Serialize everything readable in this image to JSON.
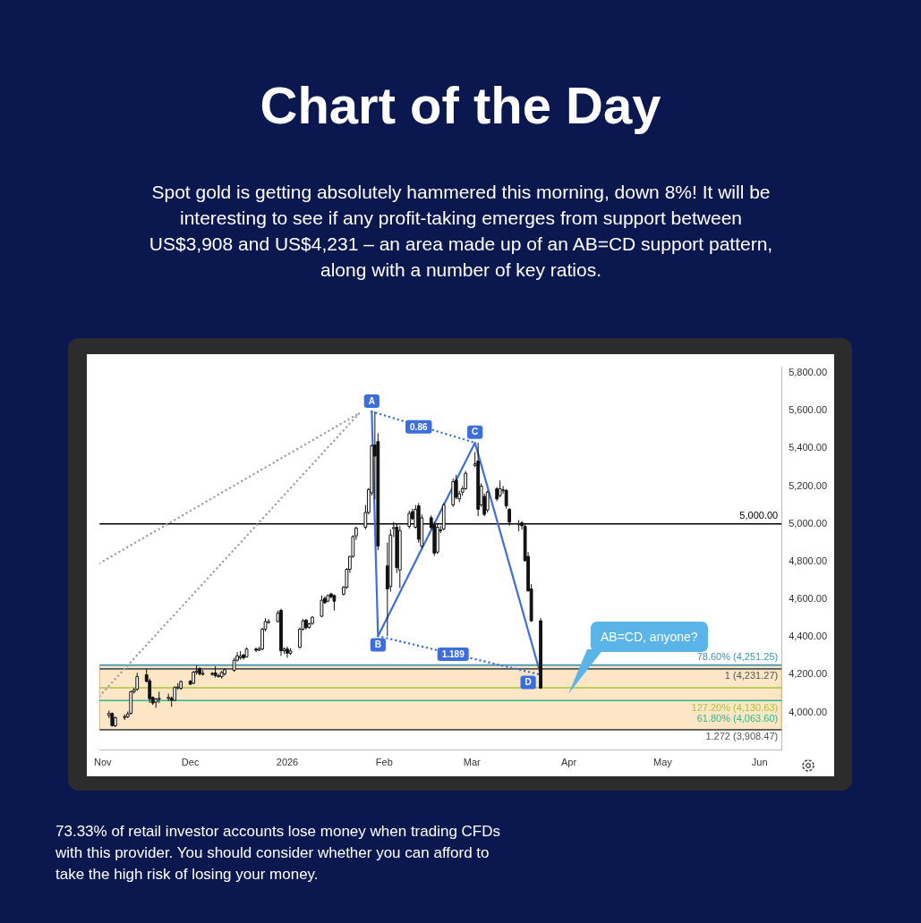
{
  "chart_data": {
    "type": "candlestick",
    "title": "Chart of the Day",
    "subtitle": "Spot gold is getting absolutely hammered this morning, down 8%! It will be interesting to see if any profit-taking emerges from support between US$3,908 and US$4,231 – an area made up of an AB=CD support pattern, along with a number of key ratios.",
    "x": [
      "2025-11-05",
      "2025-11-06",
      "2025-11-07",
      "2025-11-10",
      "2025-11-11",
      "2025-11-12",
      "2025-11-13",
      "2025-11-14",
      "2025-11-17",
      "2025-11-18",
      "2025-11-19",
      "2025-11-20",
      "2025-11-21",
      "2025-11-24",
      "2025-11-25",
      "2025-11-26",
      "2025-11-27",
      "2025-11-28",
      "2025-12-01",
      "2025-12-02",
      "2025-12-03",
      "2025-12-04",
      "2025-12-05",
      "2025-12-08",
      "2025-12-09",
      "2025-12-10",
      "2025-12-11",
      "2025-12-12",
      "2025-12-15",
      "2025-12-16",
      "2025-12-17",
      "2025-12-18",
      "2025-12-19",
      "2025-12-22",
      "2025-12-23",
      "2025-12-24",
      "2025-12-25",
      "2025-12-26",
      "2025-12-29",
      "2025-12-30",
      "2025-12-31",
      "2026-01-01",
      "2026-01-02",
      "2026-01-05",
      "2026-01-06",
      "2026-01-07",
      "2026-01-08",
      "2026-01-09",
      "2026-01-12",
      "2026-01-13",
      "2026-01-14",
      "2026-01-15",
      "2026-01-16",
      "2026-01-19",
      "2026-01-20",
      "2026-01-21",
      "2026-01-22",
      "2026-01-23",
      "2026-01-26",
      "2026-01-27",
      "2026-01-28",
      "2026-01-29",
      "2026-01-30",
      "2026-02-02",
      "2026-02-03",
      "2026-02-04",
      "2026-02-05",
      "2026-02-06",
      "2026-02-09",
      "2026-02-10",
      "2026-02-11",
      "2026-02-12",
      "2026-02-13",
      "2026-02-16",
      "2026-02-17",
      "2026-02-18",
      "2026-02-19",
      "2026-02-20",
      "2026-02-23",
      "2026-02-24",
      "2026-02-25",
      "2026-02-26",
      "2026-02-27",
      "2026-03-02",
      "2026-03-03",
      "2026-03-04",
      "2026-03-05",
      "2026-03-06",
      "2026-03-09",
      "2026-03-10",
      "2026-03-11",
      "2026-03-12",
      "2026-03-13",
      "2026-03-16",
      "2026-03-17",
      "2026-03-18",
      "2026-03-19",
      "2026-03-20",
      "2026-03-23"
    ],
    "ohlc": [
      [
        3985,
        4010,
        3970,
        3995
      ],
      [
        3995,
        4000,
        3925,
        3930
      ],
      [
        3930,
        3978,
        3922,
        3973
      ],
      [
        3973,
        3990,
        3960,
        3978
      ],
      [
        3978,
        4005,
        3970,
        3992
      ],
      [
        3995,
        4115,
        3990,
        4110
      ],
      [
        4110,
        4130,
        4100,
        4120
      ],
      [
        4123,
        4210,
        4115,
        4190
      ],
      [
        4200,
        4230,
        4160,
        4165
      ],
      [
        4168,
        4180,
        4050,
        4073
      ],
      [
        4080,
        4085,
        4040,
        4050
      ],
      [
        4055,
        4078,
        4025,
        4070
      ],
      [
        4072,
        4110,
        4050,
        4075
      ],
      [
        4075,
        4100,
        4060,
        4080
      ],
      [
        4075,
        4085,
        4030,
        4065
      ],
      [
        4064,
        4140,
        4060,
        4132
      ],
      [
        4132,
        4155,
        4120,
        4135
      ],
      [
        4128,
        4170,
        4120,
        4164
      ],
      [
        4165,
        4172,
        4145,
        4150
      ],
      [
        4155,
        4220,
        4150,
        4214
      ],
      [
        4214,
        4250,
        4200,
        4220
      ],
      [
        4232,
        4240,
        4195,
        4205
      ],
      [
        4205,
        4225,
        4195,
        4207
      ],
      [
        4207,
        4215,
        4195,
        4205
      ],
      [
        4210,
        4245,
        4185,
        4195
      ],
      [
        4195,
        4205,
        4185,
        4195
      ],
      [
        4190,
        4220,
        4180,
        4212
      ],
      [
        4205,
        4235,
        4195,
        4227
      ],
      [
        4223,
        4290,
        4215,
        4277
      ],
      [
        4277,
        4320,
        4270,
        4300
      ],
      [
        4290,
        4325,
        4280,
        4298
      ],
      [
        4305,
        4310,
        4280,
        4290
      ],
      [
        4295,
        4345,
        4290,
        4336
      ],
      [
        4336,
        4345,
        4320,
        4330
      ],
      [
        4330,
        4350,
        4325,
        4336
      ],
      [
        4336,
        4450,
        4330,
        4441
      ],
      [
        4441,
        4500,
        4430,
        4482
      ],
      [
        4482,
        4495,
        4470,
        4482
      ],
      [
        4482,
        4540,
        4478,
        4527
      ],
      [
        4541,
        4550,
        4300,
        4327
      ],
      [
        4327,
        4345,
        4310,
        4336
      ],
      [
        4336,
        4350,
        4290,
        4314
      ],
      [
        4314,
        4340,
        4305,
        4326
      ],
      [
        4345,
        4450,
        4340,
        4441
      ],
      [
        4441,
        4495,
        4435,
        4486
      ],
      [
        4490,
        4495,
        4440,
        4450
      ],
      [
        4450,
        4475,
        4445,
        4470
      ],
      [
        4472,
        4510,
        4465,
        4505
      ],
      [
        4510,
        4620,
        4505,
        4595
      ],
      [
        4605,
        4615,
        4575,
        4582
      ],
      [
        4590,
        4625,
        4585,
        4620
      ],
      [
        4628,
        4635,
        4605,
        4613
      ],
      [
        4620,
        4625,
        4540,
        4590
      ],
      [
        4627,
        4670,
        4620,
        4664
      ],
      [
        4664,
        4765,
        4655,
        4759
      ],
      [
        4759,
        4830,
        4740,
        4827
      ],
      [
        4827,
        4940,
        4820,
        4932
      ],
      [
        4936,
        4985,
        4915,
        4977
      ],
      [
        4982,
        5100,
        4970,
        5060
      ],
      [
        5060,
        5190,
        5050,
        5182
      ],
      [
        5164,
        5420,
        5150,
        5414
      ],
      [
        5418,
        5595,
        5130,
        5359
      ],
      [
        5436,
        5480,
        4860,
        4882
      ],
      [
        4777,
        4900,
        4405,
        4655
      ],
      [
        4668,
        4970,
        4640,
        4941
      ],
      [
        4975,
        5010,
        4930,
        4980
      ],
      [
        4982,
        5000,
        4740,
        4768
      ],
      [
        4755,
        4990,
        4660,
        4964
      ],
      [
        4986,
        5070,
        4975,
        5055
      ],
      [
        5064,
        5080,
        5020,
        5027
      ],
      [
        4982,
        5100,
        4975,
        5077
      ],
      [
        5095,
        5110,
        4900,
        4918
      ],
      [
        4882,
        5050,
        4870,
        5032
      ],
      [
        5032,
        5045,
        4970,
        4980
      ],
      [
        4995,
        5010,
        4830,
        4845
      ],
      [
        4850,
        5000,
        4840,
        4982
      ],
      [
        4965,
        4990,
        4950,
        4968
      ],
      [
        4973,
        5110,
        4965,
        5100
      ],
      [
        5100,
        5240,
        5090,
        5223
      ],
      [
        5232,
        5260,
        5130,
        5141
      ],
      [
        5132,
        5175,
        5115,
        5159
      ],
      [
        5168,
        5200,
        5150,
        5186
      ],
      [
        5186,
        5280,
        5180,
        5268
      ],
      [
        5310,
        5380,
        5300,
        5318
      ],
      [
        5332,
        5430,
        5040,
        5077
      ],
      [
        5100,
        5215,
        5090,
        5200
      ],
      [
        5145,
        5160,
        5040,
        5050
      ],
      [
        5073,
        5175,
        5060,
        5168
      ],
      [
        5186,
        5195,
        5120,
        5132
      ],
      [
        5150,
        5230,
        5140,
        5186
      ],
      [
        5180,
        5200,
        5160,
        5180
      ],
      [
        5177,
        5185,
        5080,
        5095
      ],
      [
        5077,
        5085,
        4990,
        5009
      ],
      [
        4995,
        5020,
        4960,
        5000
      ],
      [
        5005,
        5015,
        4970,
        4990
      ],
      [
        4986,
        5000,
        4800,
        4805
      ],
      [
        4827,
        4850,
        4640,
        4645
      ],
      [
        4655,
        4680,
        4480,
        4486
      ],
      [
        4486,
        4500,
        4125,
        4130
      ]
    ],
    "series": [
      {
        "type": "line",
        "color": "#9e9e9e",
        "line_style": "dotted",
        "x": [
          "2025-11-02",
          "2026-01-24"
        ],
        "values": [
          4791,
          5586
        ]
      },
      {
        "type": "line",
        "color": "#9e9e9e",
        "line_style": "dotted",
        "x": [
          "2025-11-02",
          "2026-01-24"
        ],
        "values": [
          4087,
          5586
        ]
      },
      {
        "type": "line",
        "color": "#3d6fdc",
        "line_style": "solid",
        "x": [
          "2026-01-28",
          "2026-01-30",
          "2026-03-02",
          "2026-03-23"
        ],
        "values": [
          5595,
          4405,
          5430,
          4200
        ]
      },
      {
        "type": "line",
        "color": "#3d6fdc",
        "line_style": "dotted",
        "x": [
          "2026-01-28",
          "2026-03-02"
        ],
        "values": [
          5595,
          5430
        ]
      },
      {
        "type": "line",
        "color": "#3d6fdc",
        "line_style": "dotted",
        "x": [
          "2026-01-30",
          "2026-03-23"
        ],
        "values": [
          4405,
          4200
        ]
      }
    ],
    "ref_lines": [
      {
        "axis": "y",
        "value": 5000,
        "label": "5,000.00",
        "color": "#000000"
      },
      {
        "axis": "y",
        "value": 4251.25,
        "label": "78.60% (4,251.25)",
        "color": "#3b94b8"
      },
      {
        "axis": "y",
        "value": 4231.27,
        "label": "1 (4,231.27)",
        "color": "#555555"
      },
      {
        "axis": "y",
        "value": 4130.63,
        "label": "127.20% (4,130.63)",
        "color": "#a8c43a"
      },
      {
        "axis": "y",
        "value": 4063.6,
        "label": "61.80% (4,063.60)",
        "color": "#2fb88a"
      },
      {
        "axis": "y",
        "value": 3908.47,
        "label": "1.272 (3,908.47)",
        "color": "#555555"
      }
    ],
    "bands": [
      {
        "axis": "y",
        "from": 3908.47,
        "to": 4251.25,
        "color": "#fde6c6"
      }
    ],
    "annotations": [
      {
        "text": "A",
        "x": "2026-01-28",
        "y": 5650
      },
      {
        "text": "B",
        "x": "2026-01-30",
        "y": 4359
      },
      {
        "text": "C",
        "x": "2026-03-02",
        "y": 5486
      },
      {
        "text": "D",
        "x": "2026-03-19",
        "y": 4159
      },
      {
        "text": "0.86",
        "x": "2026-02-12",
        "y": 5514
      },
      {
        "text": "1.189",
        "x": "2026-02-23",
        "y": 4309
      },
      "AB=CD, anyone?",
      "73.33% of retail investor accounts lose money when trading CFDs with this provider. You should consider whether you can afford to take the high risk of losing your money."
    ],
    "xlim": [
      "2025-11-02",
      "2026-06-08"
    ],
    "xticks": [
      {
        "value": "2025-11-03",
        "label": "Nov"
      },
      {
        "value": "2025-12-01",
        "label": "Dec"
      },
      {
        "value": "2026-01-01",
        "label": "2026"
      },
      {
        "value": "2026-02-01",
        "label": "Feb"
      },
      {
        "value": "2026-03-01",
        "label": "Mar"
      },
      {
        "value": "2026-04-01",
        "label": "Apr"
      },
      {
        "value": "2026-05-01",
        "label": "May"
      },
      {
        "value": "2026-06-01",
        "label": "Jun"
      }
    ],
    "ylim": [
      3800,
      5830
    ],
    "yticks": [
      {
        "value": 4000,
        "label": "4,000.00"
      },
      {
        "value": 4200,
        "label": "4,200.00"
      },
      {
        "value": 4400,
        "label": "4,400.00"
      },
      {
        "value": 4600,
        "label": "4,600.00"
      },
      {
        "value": 4800,
        "label": "4,800.00"
      },
      {
        "value": 5000,
        "label": "5,000.00"
      },
      {
        "value": 5200,
        "label": "5,200.00"
      },
      {
        "value": 5400,
        "label": "5,400.00"
      },
      {
        "value": 5600,
        "label": "5,600.00"
      },
      {
        "value": 5800,
        "label": "5,800.00"
      }
    ],
    "grid": false,
    "legend": false
  }
}
